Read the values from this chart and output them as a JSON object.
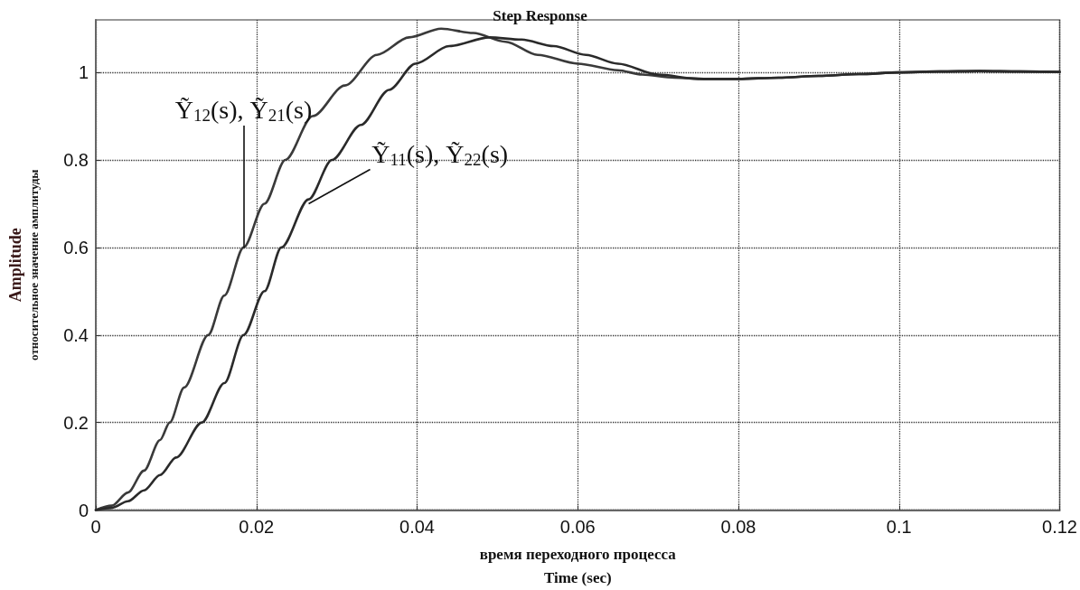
{
  "chart_data": {
    "type": "line",
    "title": "Step Response",
    "xlabel": "время переходного процесса\nTime (sec)",
    "ylabel": "Amplitude\nотносительное значение амплитуды",
    "series": [
      {
        "color": "#3a3a3a",
        "x": [
          0,
          0.002,
          0.004,
          0.006,
          0.008,
          0.0092,
          0.011,
          0.014,
          0.016,
          0.0184,
          0.021,
          0.0236,
          0.027,
          0.031,
          0.035,
          0.039,
          0.043,
          0.047,
          0.051,
          0.055,
          0.06,
          0.065,
          0.068,
          0.072,
          0.076,
          0.08,
          0.085,
          0.09,
          0.095,
          0.1,
          0.105,
          0.11,
          0.115,
          0.12
        ],
        "values": [
          0,
          0.01,
          0.04,
          0.09,
          0.16,
          0.2,
          0.28,
          0.4,
          0.49,
          0.6,
          0.7,
          0.8,
          0.9,
          0.97,
          1.04,
          1.08,
          1.1,
          1.09,
          1.07,
          1.04,
          1.02,
          1.005,
          0.995,
          0.988,
          0.985,
          0.985,
          0.988,
          0.992,
          0.996,
          1.0,
          1.002,
          1.003,
          1.002,
          1.001
        ]
      },
      {
        "color": "#2a2a2a",
        "x": [
          0,
          0.002,
          0.004,
          0.006,
          0.008,
          0.01,
          0.0132,
          0.016,
          0.0184,
          0.021,
          0.0231,
          0.0265,
          0.0294,
          0.033,
          0.0365,
          0.0398,
          0.044,
          0.049,
          0.053,
          0.057,
          0.061,
          0.065,
          0.07,
          0.075,
          0.08,
          0.085,
          0.09,
          0.095,
          0.1,
          0.105,
          0.11,
          0.115,
          0.12
        ],
        "values": [
          0,
          0.005,
          0.02,
          0.045,
          0.08,
          0.12,
          0.2,
          0.29,
          0.4,
          0.5,
          0.6,
          0.71,
          0.8,
          0.88,
          0.96,
          1.02,
          1.06,
          1.08,
          1.075,
          1.06,
          1.04,
          1.02,
          0.995,
          0.985,
          0.985,
          0.988,
          0.992,
          0.996,
          1.0,
          1.002,
          1.003,
          1.002,
          1.001
        ]
      }
    ],
    "annotations": [
      {
        "text": "Ỹ$_{12}$(s), Ỹ$_{21}$(s)",
        "x": 0.0184,
        "y": 0.6
      },
      {
        "text": "Ỹ$_{11}$(s), Ỹ$_{22}$(s)",
        "x": 0.0265,
        "y": 0.7
      }
    ],
    "xlim": [
      0,
      0.12
    ],
    "xticks": [
      0,
      0.02,
      0.04,
      0.06,
      0.08,
      0.1,
      0.12
    ],
    "ylim": [
      0,
      1.12
    ],
    "yticks": [
      0,
      0.2,
      0.4,
      0.6,
      0.8,
      1
    ],
    "grid": true,
    "marker": "none",
    "line_style": "solid"
  }
}
